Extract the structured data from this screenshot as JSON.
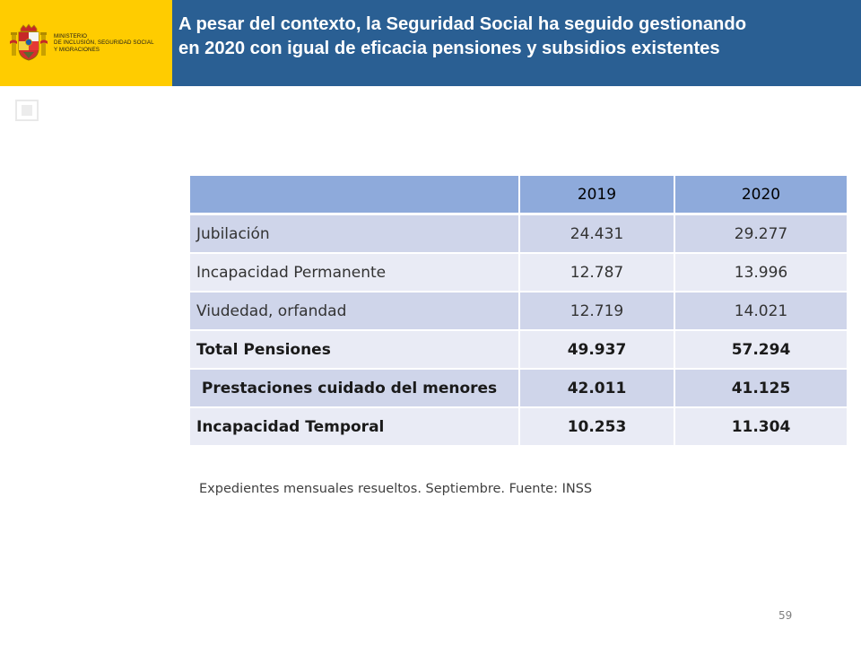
{
  "header": {
    "ministry_lines": [
      "MINISTERIO",
      "DE INCLUSIÓN, SEGURIDAD SOCIAL",
      "Y MIGRACIONES"
    ],
    "title_lines": [
      "A pesar del contexto, la Seguridad Social ha seguido gestionando",
      "en 2020 con igual de eficacia pensiones y subsidios existentes"
    ],
    "logo_color": "#ffcc00",
    "title_bar_color": "#2a5f93",
    "crest_icon": "spanish-coat-of-arms-icon"
  },
  "table": {
    "columns": [
      "",
      "2019",
      "2020"
    ],
    "rows": [
      {
        "label": "Jubilación",
        "v2019": "24.431",
        "v2020": "29.277",
        "bold": false
      },
      {
        "label": "Incapacidad Permanente",
        "v2019": "12.787",
        "v2020": "13.996",
        "bold": false
      },
      {
        "label": "Viudedad, orfandad",
        "v2019": "12.719",
        "v2020": "14.021",
        "bold": false
      },
      {
        "label": "Total Pensiones",
        "v2019": "49.937",
        "v2020": "57.294",
        "bold": true
      },
      {
        "label": " Prestaciones cuidado del menores",
        "v2019": "42.011",
        "v2020": "41.125",
        "bold": true
      },
      {
        "label": "Incapacidad Temporal",
        "v2019": "10.253",
        "v2020": "11.304",
        "bold": true
      }
    ],
    "header_color": "#8eaadb",
    "row_color_dark": "#cfd5ea",
    "row_color_light": "#e9ebf5"
  },
  "footnote": "Expedientes mensuales resueltos. Septiembre. Fuente: INSS",
  "page_number": "59"
}
